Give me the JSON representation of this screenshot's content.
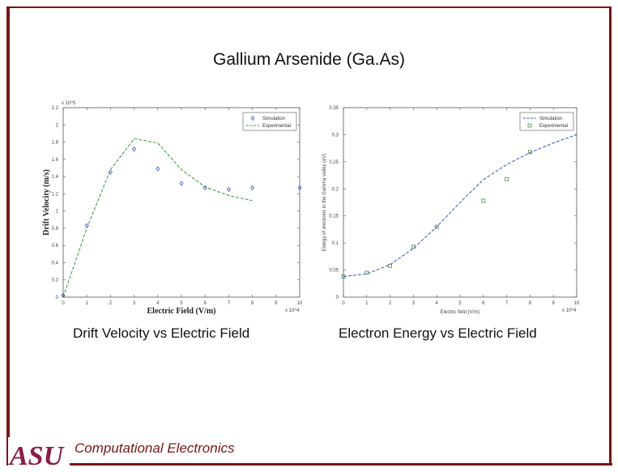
{
  "slide": {
    "title": "Gallium Arsenide (Ga.As)",
    "caption_left": "Drift Velocity vs Electric Field",
    "caption_right": "Electron Energy vs Electric Field",
    "footer": "Computational Electronics",
    "logo_text": "ASU",
    "colors": {
      "frame": "#7a1414",
      "logo": "#8c1d40",
      "logo_gold": "#d9a441",
      "sim": "#3355cc",
      "exp_left": "#339933",
      "exp_right": "#4a8a4a"
    }
  },
  "chart_data": [
    {
      "type": "line",
      "title": "",
      "xlabel": "Electric Field (V/m)",
      "ylabel": "Drift Velocity (m/s)",
      "x_exponent": "x 10^4",
      "y_exponent": "x 10^5",
      "xlim": [
        0,
        10
      ],
      "ylim": [
        0,
        2.2
      ],
      "xticks": [
        "0",
        "1",
        "2",
        "3",
        "4",
        "5",
        "6",
        "7",
        "8",
        "9",
        "10"
      ],
      "yticks": [
        "0",
        "0.2",
        "0.4",
        "0.6",
        "0.8",
        "1",
        "1.2",
        "1.4",
        "1.6",
        "1.8",
        "2",
        "2.2"
      ],
      "legend_position": "top-right",
      "series": [
        {
          "name": "Simulation",
          "style": "markers",
          "marker": "diamond",
          "x": [
            0,
            1,
            2,
            3,
            4,
            5,
            6,
            7,
            8,
            10
          ],
          "y": [
            0.02,
            0.83,
            1.45,
            1.72,
            1.49,
            1.32,
            1.27,
            1.25,
            1.27,
            1.27
          ]
        },
        {
          "name": "Experimental",
          "style": "dashed-line",
          "x": [
            0,
            1,
            2,
            3,
            4,
            5,
            6,
            7,
            8
          ],
          "y": [
            0,
            0.8,
            1.48,
            1.84,
            1.79,
            1.48,
            1.28,
            1.18,
            1.12
          ]
        }
      ]
    },
    {
      "type": "line",
      "title": "",
      "xlabel": "Electric field (V/m)",
      "ylabel": "Energy of electrons in the Gamma valley (eV)",
      "x_exponent": "x 10^4",
      "xlim": [
        0,
        10
      ],
      "ylim": [
        0,
        0.35
      ],
      "xticks": [
        "0",
        "1",
        "2",
        "3",
        "4",
        "5",
        "6",
        "7",
        "8",
        "9",
        "10"
      ],
      "yticks": [
        "0",
        "0.05",
        "0.1",
        "0.15",
        "0.2",
        "0.25",
        "0.3",
        "0.35"
      ],
      "legend_position": "top-right",
      "series": [
        {
          "name": "Simulation",
          "style": "dashed-line",
          "x": [
            0,
            1,
            2,
            3,
            4,
            5,
            6,
            7,
            8,
            9,
            10
          ],
          "y": [
            0.038,
            0.043,
            0.06,
            0.09,
            0.13,
            0.175,
            0.217,
            0.245,
            0.267,
            0.285,
            0.3
          ]
        },
        {
          "name": "Experimental",
          "style": "markers",
          "marker": "square",
          "x": [
            0,
            1,
            2,
            3,
            4,
            6,
            7,
            8
          ],
          "y": [
            0.038,
            0.045,
            0.058,
            0.093,
            0.13,
            0.178,
            0.218,
            0.268
          ]
        }
      ]
    }
  ]
}
